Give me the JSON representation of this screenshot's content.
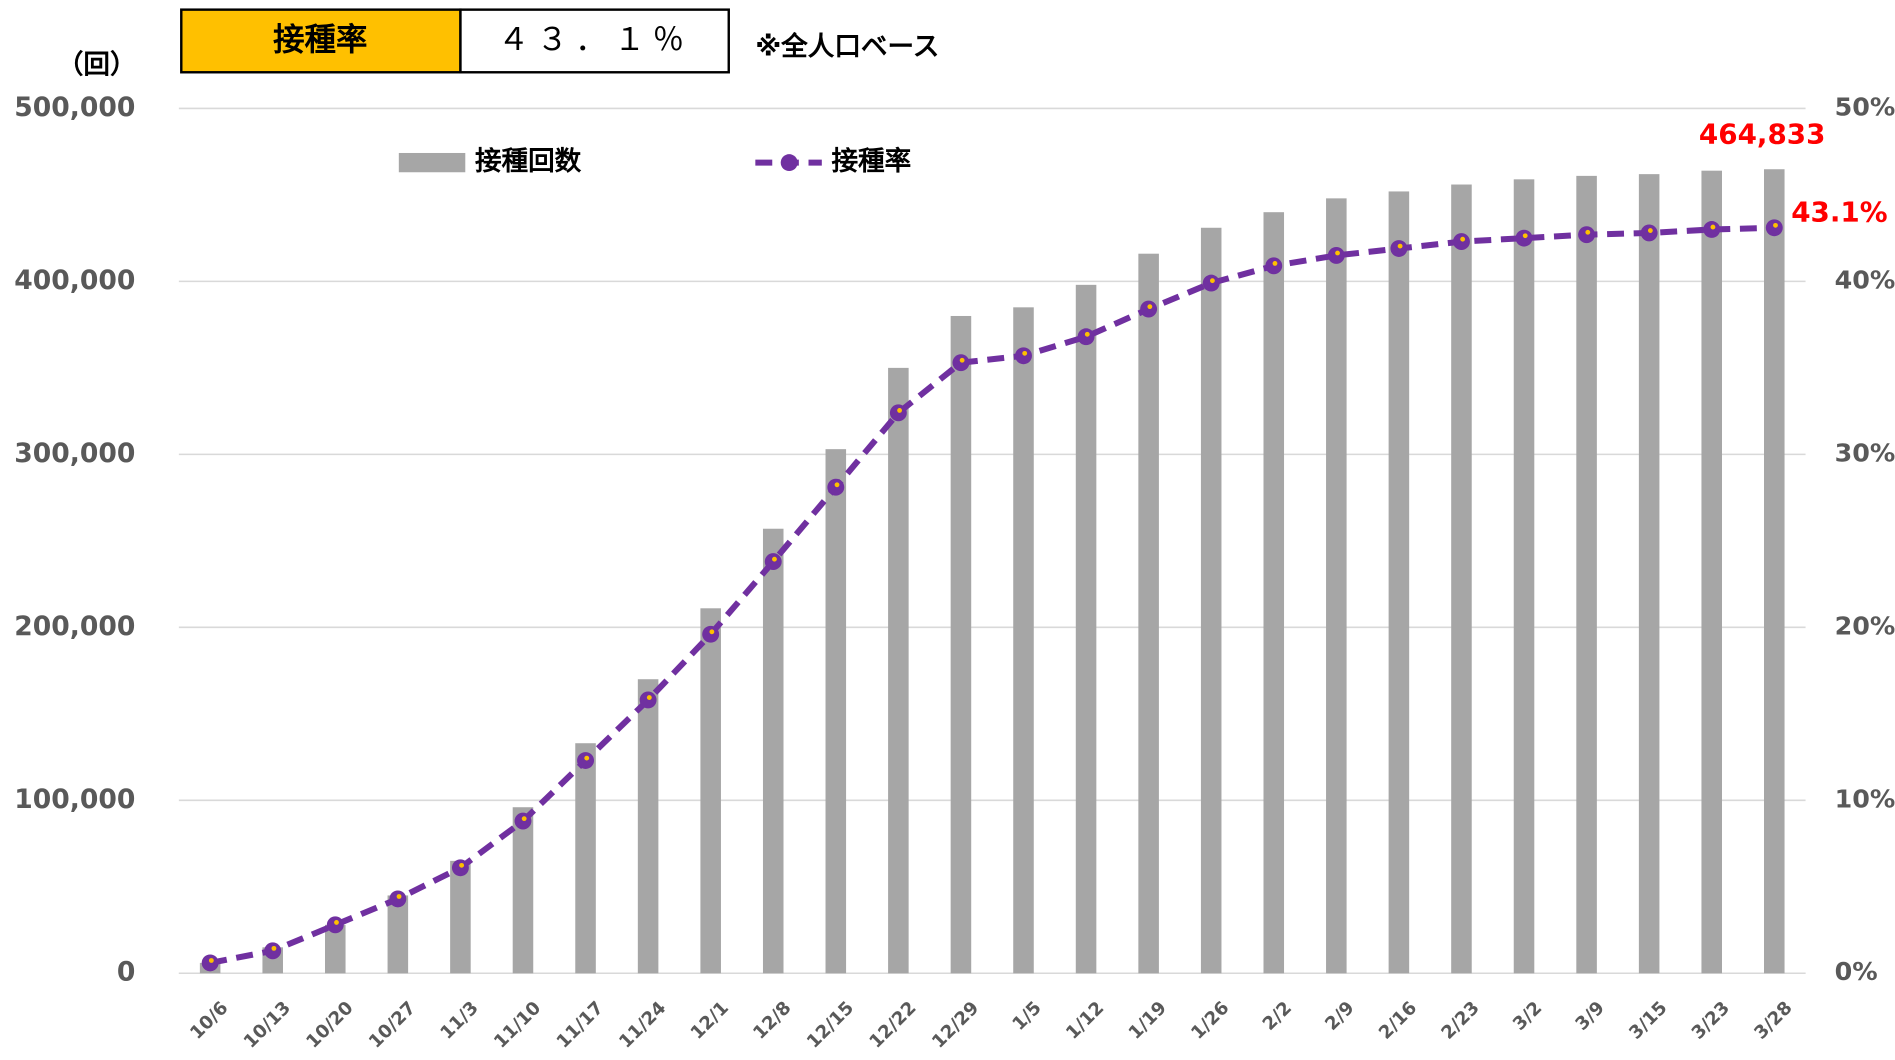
{
  "header": {
    "badge_label": "接種率",
    "badge_value": "４３．１％",
    "note": "※全人口ベース"
  },
  "chart_data": {
    "type": "bar_line",
    "y_label": "（回）",
    "categories": [
      "10/6",
      "10/13",
      "10/20",
      "10/27",
      "11/3",
      "11/10",
      "11/17",
      "11/24",
      "12/1",
      "12/8",
      "12/15",
      "12/22",
      "12/29",
      "1/5",
      "1/12",
      "1/19",
      "1/26",
      "2/2",
      "2/9",
      "2/16",
      "2/23",
      "3/2",
      "3/9",
      "3/15",
      "3/23",
      "3/28"
    ],
    "series": [
      {
        "name": "接種回数",
        "type": "bar",
        "color": "#a6a6a6",
        "values": [
          6000,
          15000,
          28000,
          45000,
          65000,
          96000,
          133000,
          170000,
          211000,
          257000,
          303000,
          350000,
          380000,
          385000,
          398000,
          416000,
          431000,
          440000,
          448000,
          452000,
          456000,
          459000,
          461000,
          462000,
          464000,
          464833
        ],
        "value_labels": [
          null,
          null,
          null,
          null,
          null,
          null,
          null,
          null,
          null,
          null,
          null,
          null,
          null,
          null,
          null,
          null,
          null,
          null,
          null,
          null,
          null,
          null,
          null,
          null,
          null,
          "464,833"
        ]
      },
      {
        "name": "接種率",
        "type": "line",
        "axis": "y2",
        "color": "#7030a0",
        "marker_color": "#ffc000",
        "values": [
          0.6,
          1.3,
          2.8,
          4.3,
          6.1,
          8.8,
          12.3,
          15.8,
          19.6,
          23.8,
          28.1,
          32.4,
          35.3,
          35.7,
          36.8,
          38.4,
          39.9,
          40.9,
          41.5,
          41.9,
          42.3,
          42.5,
          42.7,
          42.8,
          43.0,
          43.1
        ],
        "value_labels": [
          null,
          null,
          null,
          null,
          null,
          null,
          null,
          null,
          null,
          null,
          null,
          null,
          null,
          null,
          null,
          null,
          null,
          null,
          null,
          null,
          null,
          null,
          null,
          null,
          null,
          "43.1%"
        ]
      }
    ],
    "ylim": [
      0,
      500000
    ],
    "yticks": [
      0,
      {
        "value": 100000,
        "label": "100,000"
      },
      {
        "value": 200000,
        "label": "200,000"
      },
      {
        "value": 300000,
        "label": "300,000"
      },
      {
        "value": 400000,
        "label": "400,000"
      },
      {
        "value": 500000,
        "label": "500,000"
      }
    ],
    "y2lim": [
      0,
      50
    ],
    "y2ticks": [
      {
        "value": 0,
        "label": "0%"
      },
      {
        "value": 10,
        "label": "10%"
      },
      {
        "value": 20,
        "label": "20%"
      },
      {
        "value": 30,
        "label": "30%"
      },
      {
        "value": 40,
        "label": "40%"
      },
      {
        "value": 50,
        "label": "50%"
      }
    ],
    "grid": true,
    "legend": "top",
    "label_color": "#ff0000"
  }
}
